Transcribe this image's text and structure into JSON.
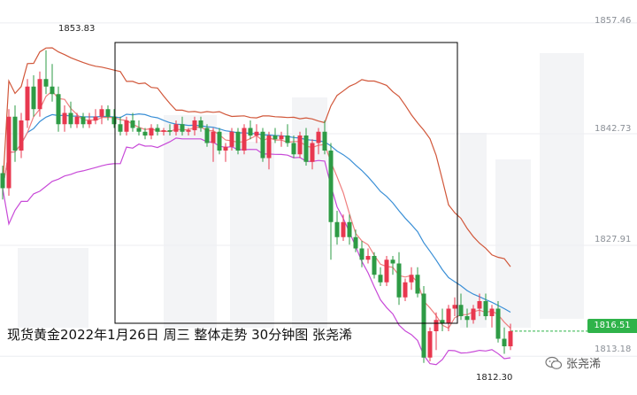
{
  "caption": "现货黄金2022年1月26日 周三 整体走势  30分钟图 张尧浠",
  "watermark": "张尧浠",
  "watermark_icon": "wechat-icon",
  "chart_data": {
    "type": "candlestick",
    "title": "现货黄金2022年1月26日 周三 整体走势  30分钟图 张尧浠",
    "y_ticks": [
      "1857.46",
      "1842.73",
      "1827.91",
      "1813.18"
    ],
    "ylim": [
      1808.5,
      1860.5
    ],
    "last_price": "1816.51",
    "annotations": [
      {
        "text": "1853.83",
        "value": 1853.83
      },
      {
        "text": "1812.30",
        "value": 1812.3
      }
    ],
    "colors": {
      "up": "#e8384f",
      "down": "#2e9b45",
      "ma_fast": "#ef7f7f",
      "mid_band": "#3a8fd6",
      "band": "#c84ad8",
      "upper_band": "#d1573a",
      "box": "#000000",
      "last": "#2fb34a"
    },
    "candles": [
      [
        1837.5,
        1838.5,
        1834.0,
        1835.5
      ],
      [
        1835.5,
        1846.0,
        1834.5,
        1845.0
      ],
      [
        1845.0,
        1846.5,
        1839.0,
        1840.5
      ],
      [
        1840.5,
        1845.5,
        1839.5,
        1844.5
      ],
      [
        1844.5,
        1850.0,
        1843.5,
        1849.0
      ],
      [
        1849.0,
        1850.5,
        1845.0,
        1846.0
      ],
      [
        1846.0,
        1851.0,
        1845.0,
        1850.0
      ],
      [
        1850.0,
        1853.83,
        1848.0,
        1849.0
      ],
      [
        1849.0,
        1852.0,
        1847.0,
        1848.0
      ],
      [
        1848.0,
        1849.0,
        1843.0,
        1844.0
      ],
      [
        1844.0,
        1846.5,
        1843.0,
        1845.5
      ],
      [
        1845.5,
        1847.0,
        1843.5,
        1844.0
      ],
      [
        1844.0,
        1845.5,
        1843.5,
        1845.0
      ],
      [
        1845.0,
        1845.5,
        1843.5,
        1844.0
      ],
      [
        1844.0,
        1845.5,
        1843.5,
        1844.5
      ],
      [
        1844.5,
        1846.0,
        1844.0,
        1845.0
      ],
      [
        1845.0,
        1846.5,
        1844.0,
        1846.0
      ],
      [
        1846.0,
        1846.5,
        1844.5,
        1845.0
      ],
      [
        1845.0,
        1846.0,
        1843.5,
        1844.0
      ],
      [
        1844.0,
        1845.0,
        1842.5,
        1843.0
      ],
      [
        1843.0,
        1845.0,
        1842.5,
        1844.5
      ],
      [
        1844.5,
        1845.5,
        1843.0,
        1843.5
      ],
      [
        1843.5,
        1844.5,
        1842.5,
        1843.0
      ],
      [
        1843.0,
        1843.5,
        1842.0,
        1842.5
      ],
      [
        1842.5,
        1844.0,
        1842.0,
        1843.5
      ],
      [
        1843.5,
        1844.0,
        1842.5,
        1843.0
      ],
      [
        1843.0,
        1843.5,
        1842.5,
        1843.2
      ],
      [
        1843.2,
        1844.0,
        1842.5,
        1843.0
      ],
      [
        1843.0,
        1844.5,
        1842.5,
        1844.0
      ],
      [
        1844.0,
        1845.0,
        1842.5,
        1843.0
      ],
      [
        1843.0,
        1843.5,
        1842.5,
        1843.2
      ],
      [
        1843.2,
        1845.0,
        1842.5,
        1844.5
      ],
      [
        1844.5,
        1845.0,
        1843.0,
        1843.5
      ],
      [
        1843.5,
        1844.0,
        1841.0,
        1841.5
      ],
      [
        1841.5,
        1843.5,
        1839.0,
        1843.0
      ],
      [
        1843.0,
        1843.5,
        1840.0,
        1840.5
      ],
      [
        1840.5,
        1841.5,
        1839.0,
        1841.0
      ],
      [
        1841.0,
        1843.5,
        1840.5,
        1843.0
      ],
      [
        1843.0,
        1843.5,
        1840.0,
        1840.5
      ],
      [
        1840.5,
        1844.0,
        1840.0,
        1843.5
      ],
      [
        1843.5,
        1844.5,
        1842.0,
        1842.5
      ],
      [
        1842.5,
        1844.0,
        1841.5,
        1843.0
      ],
      [
        1843.0,
        1843.5,
        1839.0,
        1839.5
      ],
      [
        1839.5,
        1843.0,
        1838.0,
        1842.5
      ],
      [
        1842.5,
        1843.5,
        1841.5,
        1842.0
      ],
      [
        1842.0,
        1843.0,
        1841.0,
        1842.5
      ],
      [
        1842.5,
        1844.0,
        1841.0,
        1841.5
      ],
      [
        1841.5,
        1842.5,
        1839.5,
        1840.0
      ],
      [
        1840.0,
        1843.0,
        1839.5,
        1842.5
      ],
      [
        1842.5,
        1843.5,
        1838.5,
        1839.0
      ],
      [
        1839.0,
        1842.0,
        1838.0,
        1841.5
      ],
      [
        1841.5,
        1843.5,
        1840.0,
        1843.0
      ],
      [
        1843.0,
        1844.5,
        1840.0,
        1840.5
      ],
      [
        1840.5,
        1841.5,
        1826.0,
        1831.0
      ],
      [
        1831.0,
        1832.5,
        1828.0,
        1829.0
      ],
      [
        1829.0,
        1832.0,
        1828.5,
        1831.0
      ],
      [
        1831.0,
        1832.0,
        1828.0,
        1829.0
      ],
      [
        1829.0,
        1830.0,
        1827.0,
        1827.5
      ],
      [
        1827.5,
        1828.5,
        1825.0,
        1826.0
      ],
      [
        1826.0,
        1827.5,
        1825.5,
        1826.5
      ],
      [
        1826.5,
        1827.0,
        1823.5,
        1824.0
      ],
      [
        1824.0,
        1825.0,
        1822.5,
        1823.0
      ],
      [
        1823.0,
        1826.5,
        1822.5,
        1826.0
      ],
      [
        1826.0,
        1826.5,
        1824.0,
        1825.5
      ],
      [
        1825.5,
        1827.0,
        1820.0,
        1821.0
      ],
      [
        1821.0,
        1823.5,
        1820.5,
        1823.0
      ],
      [
        1823.0,
        1825.0,
        1822.0,
        1824.0
      ],
      [
        1824.0,
        1825.0,
        1821.0,
        1821.5
      ],
      [
        1821.5,
        1822.5,
        1812.3,
        1813.0
      ],
      [
        1813.0,
        1817.0,
        1812.5,
        1816.5
      ],
      [
        1816.5,
        1819.0,
        1814.0,
        1818.0
      ],
      [
        1818.0,
        1819.5,
        1816.5,
        1817.5
      ],
      [
        1817.5,
        1820.0,
        1816.5,
        1819.5
      ],
      [
        1819.5,
        1821.0,
        1818.5,
        1820.0
      ],
      [
        1820.0,
        1821.5,
        1818.0,
        1818.5
      ],
      [
        1818.5,
        1819.5,
        1817.0,
        1818.0
      ],
      [
        1818.0,
        1820.0,
        1817.5,
        1819.5
      ],
      [
        1819.5,
        1821.5,
        1818.5,
        1820.5
      ],
      [
        1820.5,
        1821.5,
        1818.0,
        1818.5
      ],
      [
        1818.5,
        1820.0,
        1817.0,
        1819.5
      ],
      [
        1819.5,
        1820.5,
        1815.0,
        1815.5
      ],
      [
        1815.5,
        1817.0,
        1813.5,
        1814.5
      ],
      [
        1814.5,
        1817.5,
        1814.0,
        1816.51
      ]
    ]
  }
}
